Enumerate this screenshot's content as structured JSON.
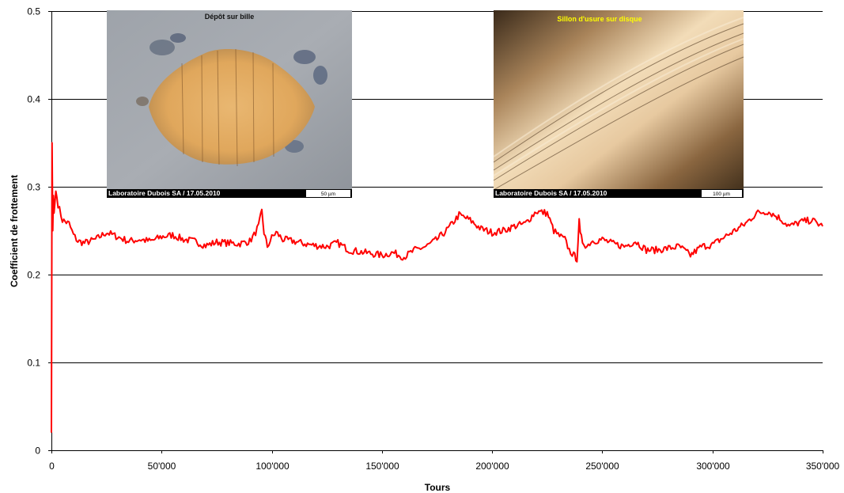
{
  "chart_data": {
    "type": "line",
    "xlabel": "Tours",
    "ylabel": "Coefficient de frottement",
    "xlim": [
      0,
      350000
    ],
    "ylim": [
      0,
      0.5
    ],
    "x_ticks": [
      "0",
      "50'000",
      "100'000",
      "150'000",
      "200'000",
      "250'000",
      "300'000",
      "350'000"
    ],
    "y_ticks": [
      "0",
      "0.1",
      "0.2",
      "0.3",
      "0.4",
      "0.5"
    ],
    "grid": "horizontal",
    "legend": "none",
    "series": [
      {
        "color": "#ff0000",
        "x": [
          0,
          300,
          600,
          900,
          1200,
          2000,
          3000,
          5000,
          8000,
          10000,
          12000,
          15000,
          20000,
          25000,
          30000,
          35000,
          40000,
          45000,
          50000,
          55000,
          60000,
          65000,
          70000,
          75000,
          80000,
          85000,
          90000,
          92000,
          94000,
          95500,
          96500,
          98000,
          100000,
          102000,
          105000,
          110000,
          115000,
          120000,
          125000,
          130000,
          135000,
          140000,
          145000,
          150000,
          155000,
          160000,
          165000,
          170000,
          175000,
          180000,
          185000,
          190000,
          195000,
          200000,
          205000,
          210000,
          215000,
          220000,
          225000,
          228000,
          230000,
          233000,
          235000,
          237000,
          238500,
          239500,
          240000,
          241000,
          243000,
          245000,
          250000,
          255000,
          260000,
          265000,
          270000,
          275000,
          280000,
          285000,
          290000,
          295000,
          300000,
          305000,
          310000,
          315000,
          320000,
          325000,
          330000,
          335000,
          340000,
          345000,
          350000
        ],
        "values": [
          0.02,
          0.35,
          0.25,
          0.29,
          0.27,
          0.295,
          0.28,
          0.262,
          0.258,
          0.245,
          0.238,
          0.236,
          0.24,
          0.248,
          0.243,
          0.238,
          0.24,
          0.238,
          0.243,
          0.245,
          0.24,
          0.238,
          0.233,
          0.237,
          0.236,
          0.235,
          0.238,
          0.245,
          0.255,
          0.272,
          0.248,
          0.232,
          0.242,
          0.248,
          0.24,
          0.238,
          0.235,
          0.233,
          0.232,
          0.236,
          0.228,
          0.226,
          0.224,
          0.222,
          0.225,
          0.22,
          0.228,
          0.232,
          0.24,
          0.252,
          0.268,
          0.262,
          0.252,
          0.248,
          0.25,
          0.255,
          0.258,
          0.272,
          0.27,
          0.25,
          0.245,
          0.24,
          0.228,
          0.222,
          0.218,
          0.26,
          0.245,
          0.238,
          0.232,
          0.238,
          0.24,
          0.235,
          0.232,
          0.238,
          0.228,
          0.228,
          0.23,
          0.232,
          0.222,
          0.232,
          0.234,
          0.242,
          0.25,
          0.258,
          0.27,
          0.272,
          0.265,
          0.255,
          0.26,
          0.262,
          0.255
        ]
      }
    ]
  },
  "insets": [
    {
      "title": "Dépôt sur bille",
      "caption": "Laboratoire Dubois SA / 17.05.2010",
      "scale": "50 µm"
    },
    {
      "title": "Sillon d'usure sur disque",
      "title_color": "#ffff00",
      "caption": "Laboratoire Dubois SA / 17.05.2010",
      "scale": "100 µm"
    }
  ]
}
